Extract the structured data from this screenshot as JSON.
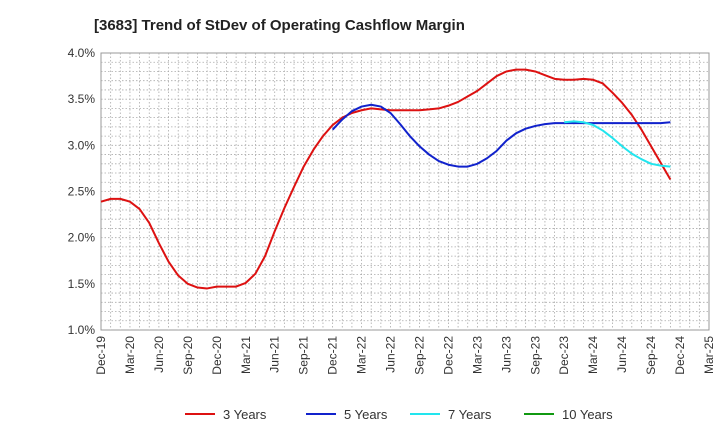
{
  "chart_data": {
    "type": "line",
    "title": "[3683]  Trend of StDev of Operating Cashflow Margin",
    "xlabel": "",
    "ylabel": "",
    "x_ticks": [
      "Dec-19",
      "Mar-20",
      "Jun-20",
      "Sep-20",
      "Dec-20",
      "Mar-21",
      "Jun-21",
      "Sep-21",
      "Dec-21",
      "Mar-22",
      "Jun-22",
      "Sep-22",
      "Dec-22",
      "Mar-23",
      "Jun-23",
      "Sep-23",
      "Dec-23",
      "Mar-24",
      "Jun-24",
      "Sep-24",
      "Dec-24",
      "Mar-25"
    ],
    "y_ticks": [
      "1.0%",
      "1.5%",
      "2.0%",
      "2.5%",
      "3.0%",
      "3.5%",
      "4.0%"
    ],
    "ylim": [
      1.0,
      4.0
    ],
    "y_unit": "%",
    "grid": true,
    "legend_position": "bottom",
    "x_points_per_tick": 3,
    "series": [
      {
        "name": "3 Years",
        "color": "#dd1111",
        "start_month_index": 0,
        "values": [
          2.39,
          2.42,
          2.42,
          2.39,
          2.31,
          2.16,
          1.94,
          1.74,
          1.59,
          1.5,
          1.46,
          1.45,
          1.47,
          1.47,
          1.47,
          1.51,
          1.61,
          1.8,
          2.07,
          2.32,
          2.55,
          2.77,
          2.95,
          3.1,
          3.22,
          3.3,
          3.35,
          3.38,
          3.4,
          3.39,
          3.38,
          3.38,
          3.38,
          3.38,
          3.39,
          3.4,
          3.43,
          3.47,
          3.53,
          3.59,
          3.67,
          3.75,
          3.8,
          3.82,
          3.82,
          3.8,
          3.76,
          3.72,
          3.71,
          3.71,
          3.72,
          3.71,
          3.67,
          3.57,
          3.46,
          3.33,
          3.17,
          2.99,
          2.81,
          2.63
        ]
      },
      {
        "name": "5 Years",
        "color": "#1122cc",
        "start_month_index": 24,
        "values": [
          3.17,
          3.28,
          3.37,
          3.42,
          3.44,
          3.42,
          3.35,
          3.23,
          3.1,
          2.99,
          2.9,
          2.83,
          2.79,
          2.77,
          2.77,
          2.8,
          2.86,
          2.94,
          3.05,
          3.13,
          3.18,
          3.21,
          3.23,
          3.24,
          3.24,
          3.24,
          3.24,
          3.24,
          3.24,
          3.24,
          3.24,
          3.24,
          3.24,
          3.24,
          3.24,
          3.25
        ]
      },
      {
        "name": "7 Years",
        "color": "#22e5ee",
        "start_month_index": 48,
        "values": [
          3.25,
          3.26,
          3.25,
          3.22,
          3.16,
          3.08,
          2.99,
          2.91,
          2.85,
          2.8,
          2.78,
          2.77
        ]
      },
      {
        "name": "10 Years",
        "color": "#119911",
        "start_month_index": 0,
        "values": []
      }
    ]
  }
}
